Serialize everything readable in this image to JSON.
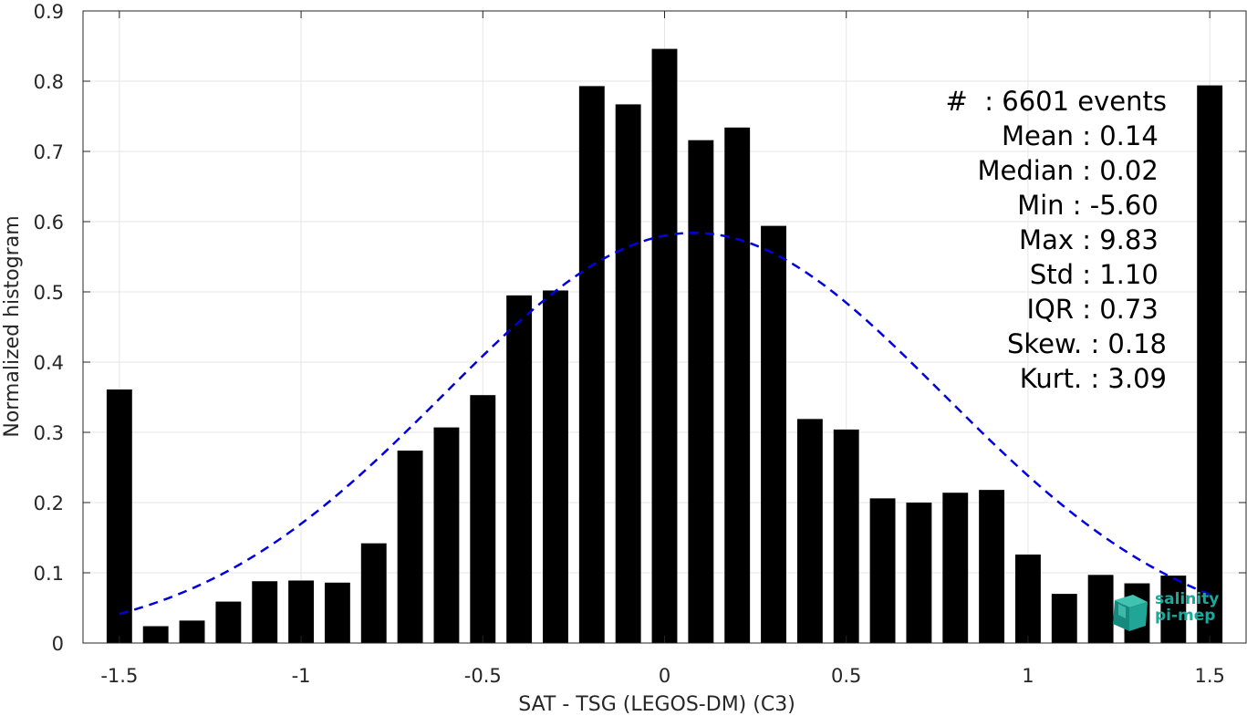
{
  "chart_data": {
    "type": "bar",
    "xlabel": "SAT - TSG (LEGOS-DM) (C3)",
    "ylabel": "Normalized histogram",
    "xlim": [
      -1.6,
      1.6
    ],
    "ylim": [
      0,
      0.9
    ],
    "x_ticks": [
      -1.5,
      -1,
      -0.5,
      0,
      0.5,
      1,
      1.5
    ],
    "x_tick_labels": [
      "-1.5",
      "-1",
      "-0.5",
      "0",
      "0.5",
      "1",
      "1.5"
    ],
    "y_ticks": [
      0,
      0.1,
      0.2,
      0.3,
      0.4,
      0.5,
      0.6,
      0.7,
      0.8,
      0.9
    ],
    "y_tick_labels": [
      "0",
      "0.1",
      "0.2",
      "0.3",
      "0.4",
      "0.5",
      "0.6",
      "0.7",
      "0.8",
      "0.9"
    ],
    "grid": true,
    "bar_width": 0.07,
    "bar_color": "#000000",
    "bins": [
      -1.5,
      -1.4,
      -1.3,
      -1.2,
      -1.1,
      -1.0,
      -0.9,
      -0.8,
      -0.7,
      -0.6,
      -0.5,
      -0.4,
      -0.3,
      -0.2,
      -0.1,
      0.0,
      0.1,
      0.2,
      0.3,
      0.4,
      0.5,
      0.6,
      0.7,
      0.8,
      0.9,
      1.0,
      1.1,
      1.2,
      1.3,
      1.4,
      1.5
    ],
    "values": [
      0.361,
      0.024,
      0.032,
      0.059,
      0.088,
      0.089,
      0.086,
      0.142,
      0.274,
      0.307,
      0.353,
      0.495,
      0.502,
      0.793,
      0.767,
      0.846,
      0.716,
      0.734,
      0.594,
      0.319,
      0.304,
      0.206,
      0.2,
      0.214,
      0.218,
      0.126,
      0.07,
      0.097,
      0.085,
      0.096,
      0.794
    ],
    "fit_curve": {
      "type": "gaussian",
      "mean": 0.08,
      "std": 0.687,
      "x_range": [
        -1.5,
        1.5
      ],
      "color": "#0000e0",
      "style": "dashed"
    },
    "stats_lines": [
      "#  : 6601 events",
      "Mean : 0.14 ",
      "Median : 0.02 ",
      "Min : -5.60 ",
      "Max : 9.83 ",
      "Std : 1.10 ",
      "IQR : 0.73 ",
      "Skew. : 0.18",
      "Kurt. : 3.09"
    ]
  },
  "logo": {
    "line1": "salinity",
    "line2": "pi-mep",
    "color": "#1aa99a"
  }
}
